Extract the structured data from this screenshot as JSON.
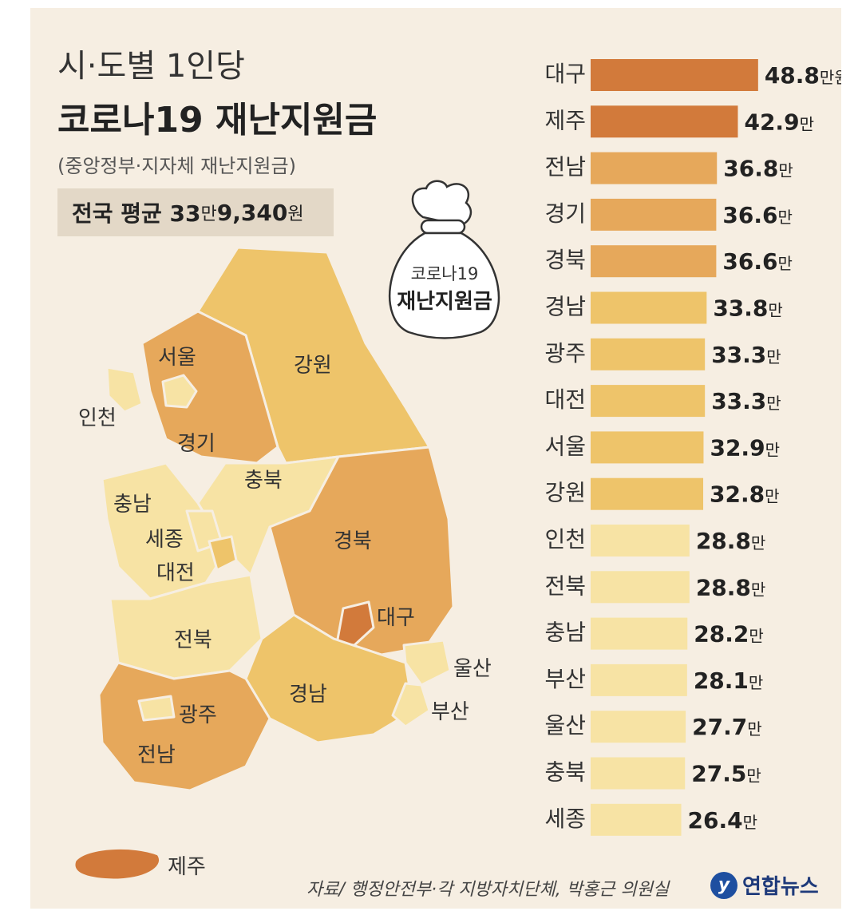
{
  "header": {
    "title_line1": "시·도별 1인당",
    "title_line2": "코로나19 재난지원금",
    "subtitle": "(중앙정부·지자체 재난지원금)",
    "average_prefix": "전국 평균 33",
    "average_unit1": "만",
    "average_value2": " 9,340",
    "average_unit2": "원"
  },
  "illustration": {
    "bag_line1": "코로나19",
    "bag_line2": "재난지원금"
  },
  "map": {
    "regions": {
      "seoul": "서울",
      "incheon": "인천",
      "gyeonggi": "경기",
      "gangwon": "강원",
      "chungbuk": "충북",
      "chungnam": "충남",
      "sejong": "세종",
      "daejeon": "대전",
      "gyeongbuk": "경북",
      "daegu": "대구",
      "jeonbuk": "전북",
      "ulsan": "울산",
      "gyeongnam": "경남",
      "busan": "부산",
      "gwangju": "광주",
      "jeonnam": "전남",
      "jeju": "제주"
    },
    "colors": {
      "darkest": "#d27a3b",
      "dark": "#e6a85b",
      "mid": "#eec46a",
      "light": "#f7e3a4"
    }
  },
  "chart_data": {
    "type": "bar",
    "orientation": "horizontal",
    "categories": [
      "대구",
      "제주",
      "전남",
      "경기",
      "경북",
      "경남",
      "광주",
      "대전",
      "서울",
      "강원",
      "인천",
      "전북",
      "충남",
      "부산",
      "울산",
      "충북",
      "세종"
    ],
    "values": [
      48.8,
      42.9,
      36.8,
      36.6,
      36.6,
      33.8,
      33.3,
      33.3,
      32.9,
      32.8,
      28.8,
      28.8,
      28.2,
      28.1,
      27.7,
      27.5,
      26.4
    ],
    "labels": [
      "48.8",
      "42.9",
      "36.8",
      "36.6",
      "36.6",
      "33.8",
      "33.3",
      "33.3",
      "32.9",
      "32.8",
      "28.8",
      "28.8",
      "28.2",
      "28.1",
      "27.7",
      "27.5",
      "26.4"
    ],
    "units": [
      "만원",
      "만",
      "만",
      "만",
      "만",
      "만",
      "만",
      "만",
      "만",
      "만",
      "만",
      "만",
      "만",
      "만",
      "만",
      "만",
      "만"
    ],
    "title": "시·도별 1인당 코로나19 재난지원금",
    "colors": [
      "#d27a3b",
      "#d27a3b",
      "#e6a85b",
      "#e6a85b",
      "#e6a85b",
      "#eec46a",
      "#eec46a",
      "#eec46a",
      "#eec46a",
      "#eec46a",
      "#f7e3a4",
      "#f7e3a4",
      "#f7e3a4",
      "#f7e3a4",
      "#f7e3a4",
      "#f7e3a4",
      "#f7e3a4"
    ]
  },
  "footer": {
    "source": "자료/ 행정안전부·각 지방자치단체, 박홍근 의원실",
    "logo_text": "연합뉴스"
  }
}
